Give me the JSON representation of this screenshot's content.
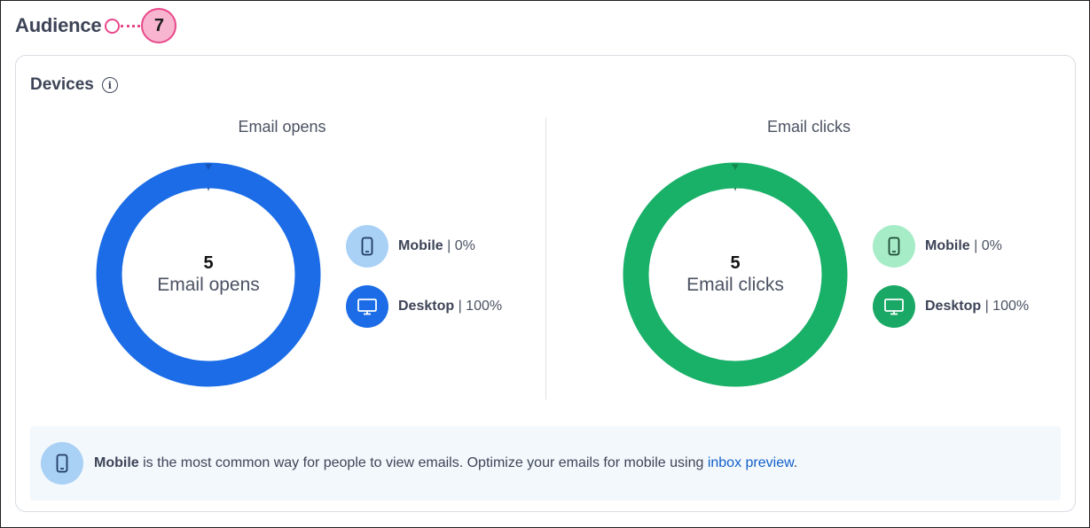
{
  "page": {
    "title": "Audience",
    "callout_number": "7"
  },
  "devices": {
    "title": "Devices",
    "info_icon": "info-icon"
  },
  "opens": {
    "title": "Email opens",
    "count": "5",
    "center_label": "Email opens",
    "mobile_label": "Mobile",
    "mobile_value": "| 0%",
    "desktop_label": "Desktop",
    "desktop_value": "| 100%",
    "color": "#1b6ce6",
    "mobile_icon_bg": "#a9d0f5",
    "desktop_icon_bg": "#1b6ce6"
  },
  "clicks": {
    "title": "Email clicks",
    "count": "5",
    "center_label": "Email clicks",
    "mobile_label": "Mobile",
    "mobile_value": "| 0%",
    "desktop_label": "Desktop",
    "desktop_value": "| 100%",
    "color": "#19b068",
    "mobile_icon_bg": "#a6ecc7",
    "desktop_icon_bg": "#19a865"
  },
  "tip": {
    "bold": "Mobile",
    "text": " is the most common way for people to view emails. Optimize your emails for mobile using ",
    "link": "inbox preview",
    "end": "."
  },
  "chart_data": [
    {
      "type": "pie",
      "title": "Email opens",
      "categories": [
        "Mobile",
        "Desktop"
      ],
      "values": [
        0,
        100
      ],
      "unit": "%"
    },
    {
      "type": "pie",
      "title": "Email clicks",
      "categories": [
        "Mobile",
        "Desktop"
      ],
      "values": [
        0,
        100
      ],
      "unit": "%"
    }
  ]
}
